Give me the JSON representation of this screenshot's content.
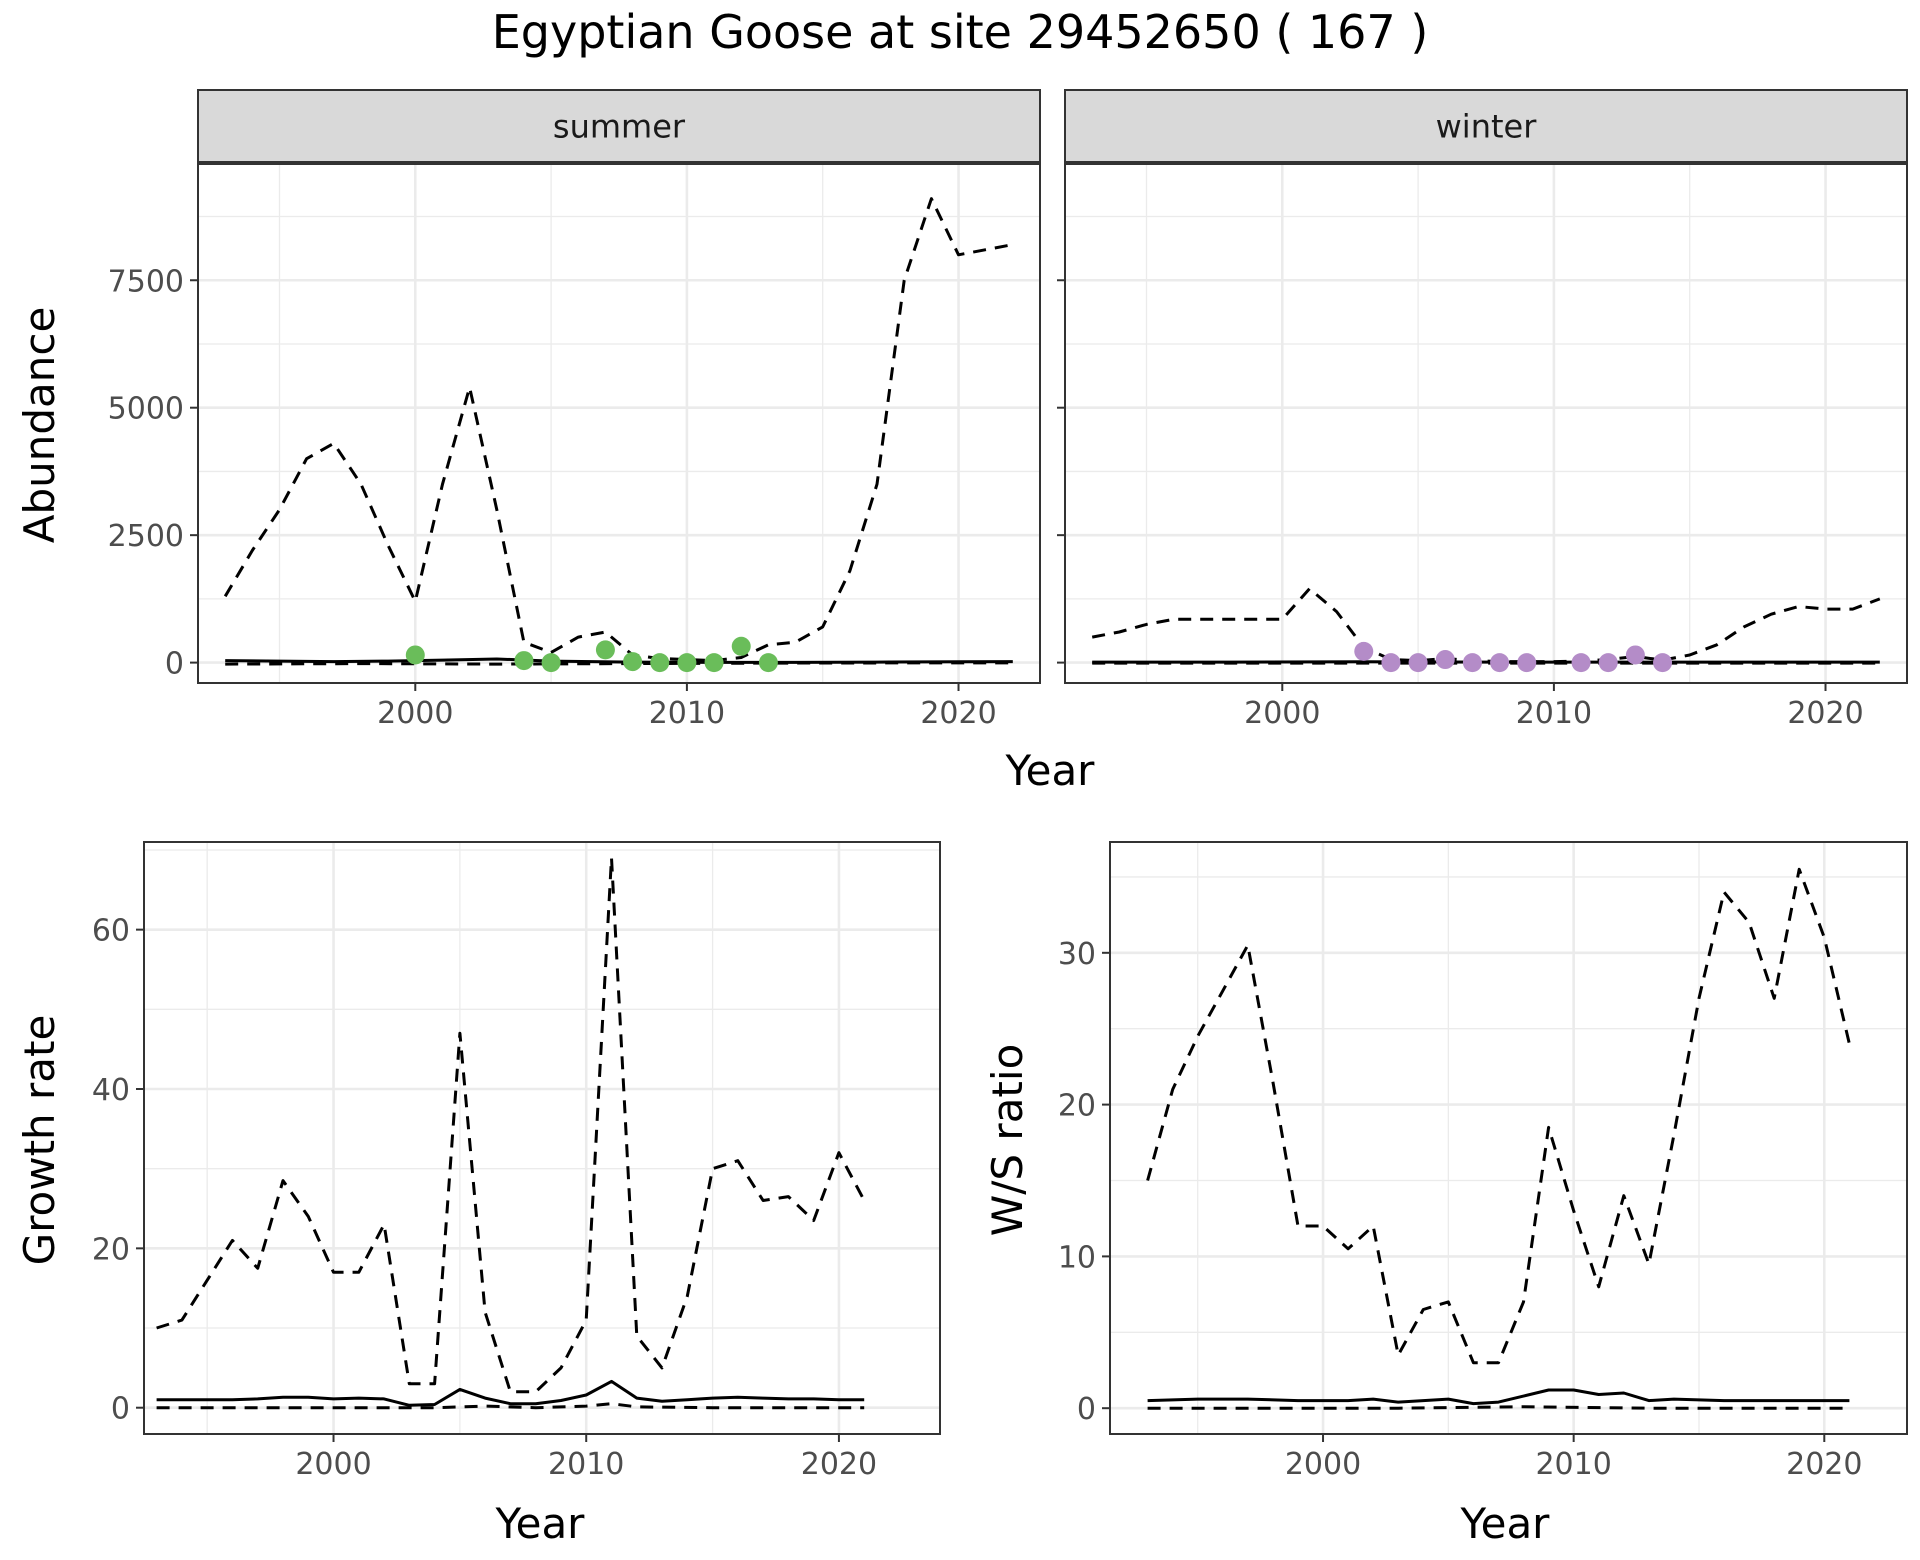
{
  "title": "Egyptian Goose at site 29452650 ( 167 )",
  "colors": {
    "summer_points": "#6ABD5A",
    "winter_points": "#B48CC8",
    "lines": "#000000",
    "strip_fill": "#D9D9D9",
    "grid": "#EBEBEB"
  },
  "chart_data": [
    {
      "type": "line",
      "panel": "summer",
      "strip_label": "summer",
      "xlabel": "Year",
      "ylabel": "Abundance",
      "xlim": [
        1992,
        2023
      ],
      "ylim": [
        -400,
        9800
      ],
      "x_ticks": [
        2000,
        2010,
        2020
      ],
      "y_ticks": [
        0,
        2500,
        5000,
        7500
      ],
      "grid": true,
      "series": [
        {
          "style": "dashed",
          "x": [
            1993,
            1994,
            1995,
            1996,
            1997,
            1998,
            1999,
            2000,
            2001,
            2002,
            2003,
            2004,
            2005,
            2006,
            2007,
            2008,
            2009,
            2010,
            2011,
            2012,
            2013,
            2014,
            2015,
            2016,
            2017,
            2018,
            2019,
            2020,
            2021,
            2022
          ],
          "y": [
            1300,
            2200,
            3000,
            4000,
            4300,
            3500,
            2300,
            1200,
            3500,
            5400,
            3000,
            400,
            200,
            500,
            600,
            150,
            80,
            60,
            40,
            100,
            350,
            400,
            700,
            1800,
            3500,
            7500,
            9100,
            8000,
            8100,
            8200
          ]
        },
        {
          "style": "solid",
          "x": [
            1993,
            1995,
            1997,
            1999,
            2001,
            2003,
            2005,
            2008,
            2011,
            2014,
            2017,
            2020,
            2022
          ],
          "y": [
            40,
            30,
            20,
            30,
            50,
            70,
            30,
            10,
            5,
            5,
            10,
            15,
            20
          ]
        },
        {
          "style": "dashed",
          "x": [
            1993,
            1998,
            2003,
            2008,
            2013,
            2018,
            2022
          ],
          "y": [
            -30,
            -20,
            -30,
            -20,
            -10,
            -5,
            -5
          ]
        }
      ],
      "points": {
        "x": [
          2000,
          2004,
          2005,
          2007,
          2008,
          2009,
          2010,
          2011,
          2012,
          2013
        ],
        "y": [
          150,
          40,
          0,
          250,
          20,
          0,
          0,
          0,
          320,
          0
        ]
      }
    },
    {
      "type": "line",
      "panel": "winter",
      "strip_label": "winter",
      "xlabel": "Year",
      "ylabel": "",
      "xlim": [
        1992,
        2023
      ],
      "ylim": [
        -400,
        9800
      ],
      "x_ticks": [
        2000,
        2010,
        2020
      ],
      "y_ticks": [
        0,
        2500,
        5000,
        7500
      ],
      "grid": true,
      "series": [
        {
          "style": "dashed",
          "x": [
            1993,
            1994,
            1995,
            1996,
            1997,
            1998,
            1999,
            2000,
            2001,
            2002,
            2003,
            2004,
            2005,
            2006,
            2007,
            2008,
            2009,
            2010,
            2011,
            2012,
            2013,
            2014,
            2015,
            2016,
            2017,
            2018,
            2019,
            2020,
            2021,
            2022
          ],
          "y": [
            500,
            600,
            750,
            850,
            850,
            850,
            850,
            850,
            1450,
            1000,
            300,
            60,
            40,
            80,
            40,
            20,
            20,
            20,
            30,
            60,
            120,
            50,
            150,
            350,
            700,
            950,
            1100,
            1050,
            1050,
            1250
          ]
        },
        {
          "style": "solid",
          "x": [
            1993,
            1998,
            2003,
            2008,
            2013,
            2018,
            2022
          ],
          "y": [
            10,
            10,
            15,
            10,
            10,
            10,
            10
          ]
        },
        {
          "style": "dashed",
          "x": [
            1993,
            1998,
            2003,
            2008,
            2013,
            2018,
            2022
          ],
          "y": [
            -10,
            -10,
            -10,
            -10,
            -10,
            -10,
            -10
          ]
        }
      ],
      "points": {
        "x": [
          2003,
          2004,
          2005,
          2006,
          2007,
          2008,
          2009,
          2011,
          2012,
          2013,
          2014
        ],
        "y": [
          220,
          0,
          0,
          60,
          0,
          0,
          0,
          0,
          0,
          150,
          0
        ]
      }
    },
    {
      "type": "line",
      "panel": "growth",
      "strip_label": "",
      "xlabel": "Year",
      "ylabel": "Growth rate",
      "xlim": [
        1992.5,
        2024
      ],
      "ylim": [
        -3.3,
        71
      ],
      "x_ticks": [
        2000,
        2010,
        2020
      ],
      "y_ticks": [
        0,
        20,
        40,
        60
      ],
      "grid": true,
      "series": [
        {
          "style": "dashed",
          "x": [
            1993,
            1994,
            1995,
            1996,
            1997,
            1998,
            1999,
            2000,
            2001,
            2002,
            2003,
            2004,
            2005,
            2006,
            2007,
            2008,
            2009,
            2010,
            2011,
            2012,
            2013,
            2014,
            2015,
            2016,
            2017,
            2018,
            2019,
            2020,
            2021
          ],
          "y": [
            10,
            11,
            16,
            21,
            17.5,
            28.5,
            24,
            17,
            17,
            23,
            3,
            3,
            47,
            12,
            2,
            2,
            5,
            11,
            69,
            9,
            5,
            14,
            30,
            31,
            26,
            26.5,
            23.5,
            32,
            26
          ]
        },
        {
          "style": "solid",
          "x": [
            1993,
            1994,
            1995,
            1996,
            1997,
            1998,
            1999,
            2000,
            2001,
            2002,
            2003,
            2004,
            2005,
            2006,
            2007,
            2008,
            2009,
            2010,
            2011,
            2012,
            2013,
            2014,
            2015,
            2016,
            2017,
            2018,
            2019,
            2020,
            2021
          ],
          "y": [
            1,
            1,
            1,
            1,
            1.1,
            1.3,
            1.3,
            1.1,
            1.2,
            1.1,
            0.3,
            0.4,
            2.3,
            1.2,
            0.5,
            0.5,
            0.9,
            1.6,
            3.3,
            1.2,
            0.8,
            1,
            1.2,
            1.3,
            1.2,
            1.1,
            1.1,
            1,
            1
          ]
        },
        {
          "style": "dashed",
          "x": [
            1993,
            1996,
            1999,
            2002,
            2004,
            2006,
            2008,
            2010,
            2011,
            2012,
            2015,
            2018,
            2021
          ],
          "y": [
            0,
            0,
            0,
            0,
            0,
            0.2,
            0,
            0.2,
            0.5,
            0.1,
            0,
            0,
            0
          ]
        }
      ]
    },
    {
      "type": "line",
      "panel": "ratio",
      "strip_label": "",
      "xlabel": "Year",
      "ylabel": "W/S ratio",
      "xlim": [
        1991.5,
        2023.3
      ],
      "ylim": [
        -1.7,
        37.3
      ],
      "x_ticks": [
        2000,
        2010,
        2020
      ],
      "y_ticks": [
        0,
        10,
        20,
        30
      ],
      "grid": true,
      "series": [
        {
          "style": "dashed",
          "x": [
            1993,
            1994,
            1995,
            1996,
            1997,
            1998,
            1999,
            2000,
            2001,
            2002,
            2003,
            2004,
            2005,
            2006,
            2007,
            2008,
            2009,
            2010,
            2011,
            2012,
            2013,
            2014,
            2015,
            2016,
            2017,
            2018,
            2019,
            2020,
            2021
          ],
          "y": [
            15,
            21,
            24.5,
            27.5,
            30.5,
            21.5,
            12,
            12,
            10.5,
            12,
            3.5,
            6.5,
            7,
            3,
            3,
            7,
            18.5,
            13,
            8,
            14,
            9.5,
            18,
            27,
            34,
            32,
            27,
            35.5,
            31,
            24
          ]
        },
        {
          "style": "solid",
          "x": [
            1993,
            1995,
            1997,
            1999,
            2001,
            2002,
            2003,
            2004,
            2005,
            2006,
            2007,
            2008,
            2009,
            2010,
            2011,
            2012,
            2013,
            2014,
            2016,
            2018,
            2021
          ],
          "y": [
            0.5,
            0.6,
            0.6,
            0.5,
            0.5,
            0.6,
            0.4,
            0.5,
            0.6,
            0.3,
            0.4,
            0.8,
            1.2,
            1.2,
            0.9,
            1,
            0.5,
            0.6,
            0.5,
            0.5,
            0.5
          ]
        },
        {
          "style": "dashed",
          "x": [
            1993,
            1998,
            2003,
            2008,
            2013,
            2018,
            2021
          ],
          "y": [
            0,
            0,
            0,
            0.1,
            0,
            0,
            0
          ]
        }
      ]
    }
  ]
}
